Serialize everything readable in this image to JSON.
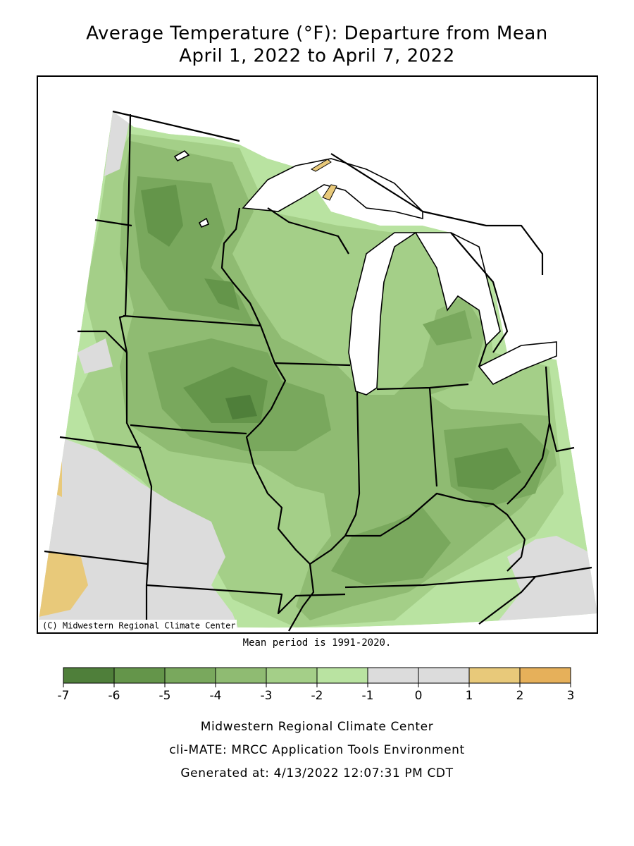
{
  "title": "Average Temperature (°F): Departure from Mean",
  "subtitle": "April 1, 2022 to April 7, 2022",
  "credit": "(C) Midwestern Regional Climate Center",
  "note": "Mean period is 1991-2020.",
  "legend": {
    "bins": [
      -7,
      -6,
      -5,
      -4,
      -3,
      -2,
      -1,
      0,
      1,
      2,
      3
    ],
    "colors": [
      "#4f7f3a",
      "#64954a",
      "#79a85d",
      "#8fbb72",
      "#a4cf88",
      "#b9e3a1",
      "#dcdcdc",
      "#dcdcdc",
      "#e8c97a",
      "#e6b05a"
    ]
  },
  "footer": [
    "Midwestern Regional Climate Center",
    "cli-MATE: MRCC Application Tools Environment",
    "Generated at: 4/13/2022 12:07:31 PM CDT"
  ]
}
